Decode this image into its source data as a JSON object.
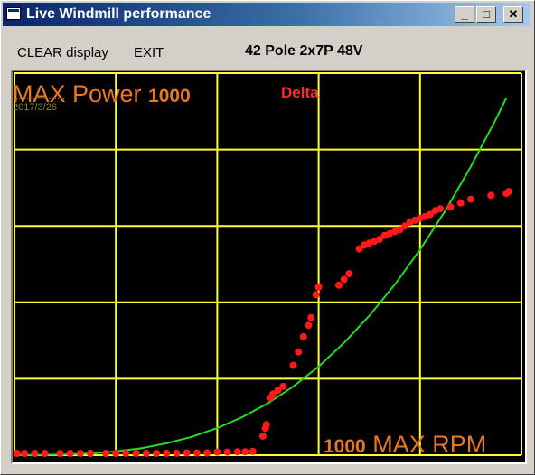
{
  "window": {
    "title": "Live Windmill performance"
  },
  "titlebar_buttons": {
    "minimize": "_",
    "maximize": "□",
    "close": "✕"
  },
  "menu": {
    "clear": "CLEAR display",
    "exit": "EXIT"
  },
  "config_label": "42 Pole 2x7P 48V",
  "overlay": {
    "max_power_text": "MAX Power",
    "max_power_value": "1000",
    "mode": "Delta",
    "max_rpm_value": "1000",
    "max_rpm_text": "MAX RPM",
    "watermark_line1": "...................",
    "watermark_line2": "2017/3/26"
  },
  "icons": {
    "app": "window-app-icon",
    "minimize": "minimize-icon",
    "maximize": "maximize-icon",
    "close": "close-icon"
  },
  "colors": {
    "grid": "#ffff33",
    "theory_curve": "#22dd22",
    "measured_points": "#ff1a1a",
    "labels": "#e87722",
    "background": "#000000"
  },
  "chart_data": {
    "type": "scatter",
    "xlim": [
      0,
      1000
    ],
    "ylim": [
      0,
      1000
    ],
    "grid": true,
    "gridlines": 5,
    "series": [
      {
        "kind": "line",
        "points": [
          [
            0,
            0
          ],
          [
            50,
            0.5
          ],
          [
            100,
            2
          ],
          [
            150,
            4.5
          ],
          [
            200,
            10
          ],
          [
            250,
            18
          ],
          [
            300,
            31
          ],
          [
            350,
            48
          ],
          [
            400,
            71
          ],
          [
            450,
            100
          ],
          [
            500,
            136
          ],
          [
            550,
            180
          ],
          [
            600,
            232
          ],
          [
            650,
            294
          ],
          [
            700,
            365
          ],
          [
            750,
            446
          ],
          [
            800,
            538
          ],
          [
            850,
            640
          ],
          [
            900,
            755
          ],
          [
            950,
            880
          ],
          [
            970,
            935
          ]
        ]
      },
      {
        "kind": "scatter",
        "points": [
          [
            5,
            0
          ],
          [
            20,
            0
          ],
          [
            40,
            0
          ],
          [
            60,
            0
          ],
          [
            90,
            0
          ],
          [
            110,
            0
          ],
          [
            130,
            0
          ],
          [
            150,
            0
          ],
          [
            180,
            2
          ],
          [
            200,
            2
          ],
          [
            220,
            2
          ],
          [
            240,
            4
          ],
          [
            260,
            4
          ],
          [
            280,
            4
          ],
          [
            300,
            5
          ],
          [
            320,
            5
          ],
          [
            340,
            6
          ],
          [
            360,
            6
          ],
          [
            380,
            6
          ],
          [
            400,
            8
          ],
          [
            420,
            8
          ],
          [
            440,
            9
          ],
          [
            455,
            9
          ],
          [
            470,
            10
          ],
          [
            490,
            50
          ],
          [
            495,
            70
          ],
          [
            497,
            80
          ],
          [
            505,
            150
          ],
          [
            510,
            160
          ],
          [
            520,
            170
          ],
          [
            530,
            180
          ],
          [
            550,
            235
          ],
          [
            560,
            270
          ],
          [
            570,
            310
          ],
          [
            580,
            340
          ],
          [
            585,
            360
          ],
          [
            595,
            420
          ],
          [
            600,
            440
          ],
          [
            640,
            445
          ],
          [
            650,
            460
          ],
          [
            660,
            475
          ],
          [
            680,
            540
          ],
          [
            690,
            550
          ],
          [
            700,
            555
          ],
          [
            710,
            560
          ],
          [
            720,
            565
          ],
          [
            730,
            575
          ],
          [
            740,
            580
          ],
          [
            750,
            585
          ],
          [
            760,
            590
          ],
          [
            770,
            600
          ],
          [
            780,
            610
          ],
          [
            790,
            615
          ],
          [
            800,
            620
          ],
          [
            810,
            625
          ],
          [
            820,
            630
          ],
          [
            830,
            640
          ],
          [
            840,
            645
          ],
          [
            860,
            650
          ],
          [
            880,
            660
          ],
          [
            900,
            670
          ],
          [
            940,
            680
          ],
          [
            970,
            685
          ],
          [
            975,
            690
          ]
        ]
      }
    ]
  }
}
